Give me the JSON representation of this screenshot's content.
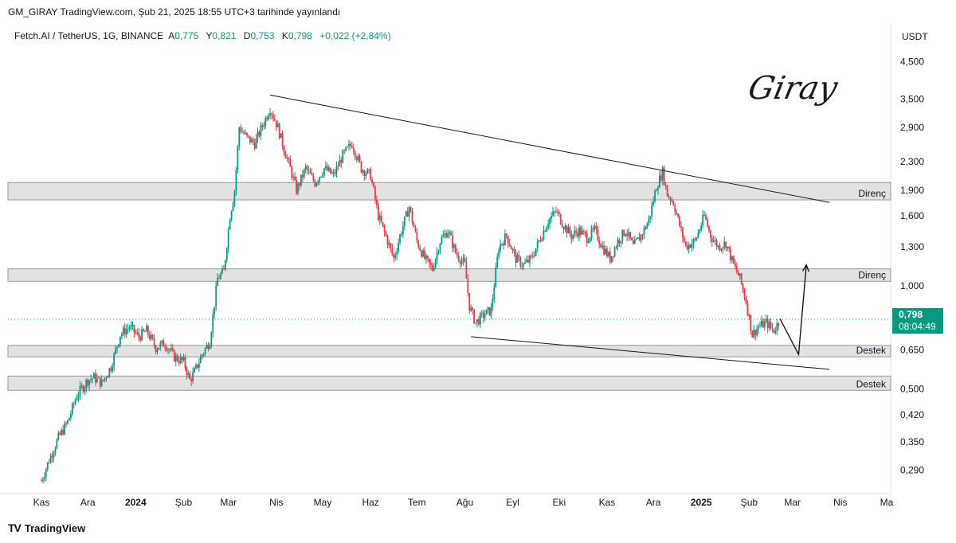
{
  "header": {
    "publish_line": "GM_GIRAY TradingView.com, Şub 21, 2025 18:55 UTC+3 tarihinde yayınlandı"
  },
  "legend": {
    "symbol": "Fetch.AI / TetherUS, 1G, BINANCE",
    "open_label": "A",
    "open": "0,775",
    "high_label": "Y",
    "high": "0,821",
    "low_label": "D",
    "low": "0,753",
    "close_label": "K",
    "close": "0,798",
    "change": "+0,022 (+2,84%)"
  },
  "price_axis": {
    "unit": "USDT"
  },
  "last_price": {
    "price": "0,798",
    "countdown": "08:04:49"
  },
  "signature": "Giray",
  "footer": {
    "brand": "TradingView",
    "logo_icon": "tradingview-logo-icon"
  },
  "colors": {
    "up": "#089981",
    "down": "#f23645",
    "zone_fill": "#e2e2e2",
    "zone_border": "#9a9a9a",
    "line": "#131722"
  },
  "chart_data": {
    "type": "candlestick",
    "y_scale": "log",
    "ylim": [
      0.25,
      5.0
    ],
    "y_ticks": [
      {
        "value": 4.5,
        "label": "4,500"
      },
      {
        "value": 3.5,
        "label": "3,500"
      },
      {
        "value": 2.9,
        "label": "2,900"
      },
      {
        "value": 2.3,
        "label": "2,300"
      },
      {
        "value": 1.9,
        "label": "1,900"
      },
      {
        "value": 1.6,
        "label": "1,600"
      },
      {
        "value": 1.3,
        "label": "1,300"
      },
      {
        "value": 1.0,
        "label": "1,000"
      },
      {
        "value": 0.65,
        "label": "0,650"
      },
      {
        "value": 0.5,
        "label": "0,500"
      },
      {
        "value": 0.42,
        "label": "0,420"
      },
      {
        "value": 0.35,
        "label": "0,350"
      },
      {
        "value": 0.29,
        "label": "0,290"
      }
    ],
    "x_range": [
      "2023-11-01",
      "2025-05-01"
    ],
    "x_ticks": [
      {
        "date": "2023-11-01",
        "label": "Kas",
        "bold": false
      },
      {
        "date": "2023-12-01",
        "label": "Ara",
        "bold": false
      },
      {
        "date": "2024-01-01",
        "label": "2024",
        "bold": true
      },
      {
        "date": "2024-02-01",
        "label": "Şub",
        "bold": false
      },
      {
        "date": "2024-03-01",
        "label": "Mar",
        "bold": false
      },
      {
        "date": "2024-04-01",
        "label": "Nis",
        "bold": false
      },
      {
        "date": "2024-05-01",
        "label": "May",
        "bold": false
      },
      {
        "date": "2024-06-01",
        "label": "Haz",
        "bold": false
      },
      {
        "date": "2024-07-01",
        "label": "Tem",
        "bold": false
      },
      {
        "date": "2024-08-01",
        "label": "Ağu",
        "bold": false
      },
      {
        "date": "2024-09-01",
        "label": "Eyl",
        "bold": false
      },
      {
        "date": "2024-10-01",
        "label": "Eki",
        "bold": false
      },
      {
        "date": "2024-11-01",
        "label": "Kas",
        "bold": false
      },
      {
        "date": "2024-12-01",
        "label": "Ara",
        "bold": false
      },
      {
        "date": "2025-01-01",
        "label": "2025",
        "bold": true
      },
      {
        "date": "2025-02-01",
        "label": "Şub",
        "bold": false
      },
      {
        "date": "2025-03-01",
        "label": "Mar",
        "bold": false
      },
      {
        "date": "2025-04-01",
        "label": "Nis",
        "bold": false
      },
      {
        "date": "2025-05-01",
        "label": "Ma",
        "bold": false
      }
    ],
    "price_path": [
      [
        "2023-11-01",
        0.27
      ],
      [
        "2023-11-06",
        0.31
      ],
      [
        "2023-11-12",
        0.36
      ],
      [
        "2023-11-18",
        0.4
      ],
      [
        "2023-11-24",
        0.48
      ],
      [
        "2023-12-01",
        0.53
      ],
      [
        "2023-12-05",
        0.54
      ],
      [
        "2023-12-10",
        0.52
      ],
      [
        "2023-12-16",
        0.58
      ],
      [
        "2023-12-22",
        0.72
      ],
      [
        "2023-12-28",
        0.76
      ],
      [
        "2024-01-03",
        0.71
      ],
      [
        "2024-01-08",
        0.74
      ],
      [
        "2024-01-14",
        0.66
      ],
      [
        "2024-01-20",
        0.68
      ],
      [
        "2024-01-26",
        0.62
      ],
      [
        "2024-02-01",
        0.6
      ],
      [
        "2024-02-05",
        0.53
      ],
      [
        "2024-02-08",
        0.56
      ],
      [
        "2024-02-13",
        0.63
      ],
      [
        "2024-02-18",
        0.69
      ],
      [
        "2024-02-23",
        1.05
      ],
      [
        "2024-02-27",
        1.1
      ],
      [
        "2024-03-02",
        1.6
      ],
      [
        "2024-03-05",
        1.9
      ],
      [
        "2024-03-08",
        2.9
      ],
      [
        "2024-03-13",
        2.7
      ],
      [
        "2024-03-18",
        2.6
      ],
      [
        "2024-03-24",
        3.0
      ],
      [
        "2024-03-28",
        3.3
      ],
      [
        "2024-04-02",
        2.9
      ],
      [
        "2024-04-06",
        2.5
      ],
      [
        "2024-04-10",
        2.2
      ],
      [
        "2024-04-14",
        1.9
      ],
      [
        "2024-04-20",
        2.2
      ],
      [
        "2024-04-26",
        2.0
      ],
      [
        "2024-05-02",
        2.2
      ],
      [
        "2024-05-08",
        2.1
      ],
      [
        "2024-05-14",
        2.4
      ],
      [
        "2024-05-20",
        2.6
      ],
      [
        "2024-05-26",
        2.2
      ],
      [
        "2024-06-01",
        2.1
      ],
      [
        "2024-06-06",
        1.6
      ],
      [
        "2024-06-12",
        1.35
      ],
      [
        "2024-06-16",
        1.2
      ],
      [
        "2024-06-21",
        1.45
      ],
      [
        "2024-06-26",
        1.7
      ],
      [
        "2024-07-01",
        1.35
      ],
      [
        "2024-07-06",
        1.2
      ],
      [
        "2024-07-11",
        1.12
      ],
      [
        "2024-07-16",
        1.35
      ],
      [
        "2024-07-21",
        1.45
      ],
      [
        "2024-07-26",
        1.25
      ],
      [
        "2024-08-01",
        1.15
      ],
      [
        "2024-08-04",
        0.87
      ],
      [
        "2024-08-08",
        0.78
      ],
      [
        "2024-08-13",
        0.82
      ],
      [
        "2024-08-18",
        0.85
      ],
      [
        "2024-08-23",
        1.3
      ],
      [
        "2024-08-28",
        1.4
      ],
      [
        "2024-09-03",
        1.2
      ],
      [
        "2024-09-08",
        1.15
      ],
      [
        "2024-09-13",
        1.2
      ],
      [
        "2024-09-18",
        1.35
      ],
      [
        "2024-09-24",
        1.55
      ],
      [
        "2024-09-29",
        1.65
      ],
      [
        "2024-10-04",
        1.5
      ],
      [
        "2024-10-09",
        1.4
      ],
      [
        "2024-10-14",
        1.45
      ],
      [
        "2024-10-19",
        1.38
      ],
      [
        "2024-10-24",
        1.45
      ],
      [
        "2024-10-29",
        1.3
      ],
      [
        "2024-11-03",
        1.2
      ],
      [
        "2024-11-08",
        1.35
      ],
      [
        "2024-11-13",
        1.45
      ],
      [
        "2024-11-18",
        1.3
      ],
      [
        "2024-11-23",
        1.4
      ],
      [
        "2024-11-28",
        1.55
      ],
      [
        "2024-12-03",
        1.95
      ],
      [
        "2024-12-07",
        2.15
      ],
      [
        "2024-12-10",
        1.85
      ],
      [
        "2024-12-14",
        1.75
      ],
      [
        "2024-12-18",
        1.5
      ],
      [
        "2024-12-22",
        1.3
      ],
      [
        "2024-12-28",
        1.35
      ],
      [
        "2025-01-03",
        1.6
      ],
      [
        "2025-01-07",
        1.4
      ],
      [
        "2025-01-12",
        1.3
      ],
      [
        "2025-01-17",
        1.33
      ],
      [
        "2025-01-22",
        1.15
      ],
      [
        "2025-01-26",
        1.05
      ],
      [
        "2025-01-30",
        0.9
      ],
      [
        "2025-02-03",
        0.72
      ],
      [
        "2025-02-07",
        0.76
      ],
      [
        "2025-02-12",
        0.78
      ],
      [
        "2025-02-17",
        0.74
      ],
      [
        "2025-02-21",
        0.798
      ]
    ],
    "zones": [
      {
        "label": "Direnç",
        "top": 2.0,
        "bottom": 1.78
      },
      {
        "label": "Direnç",
        "top": 1.12,
        "bottom": 1.03
      },
      {
        "label": "Destek",
        "top": 0.67,
        "bottom": 0.62
      },
      {
        "label": "Destek",
        "top": 0.545,
        "bottom": 0.495
      }
    ],
    "trendlines": [
      {
        "from": [
          "2024-03-28",
          3.6
        ],
        "to": [
          "2025-03-25",
          1.75
        ]
      },
      {
        "from": [
          "2024-08-05",
          0.71
        ],
        "to": [
          "2025-03-25",
          0.57
        ]
      }
    ],
    "projection": [
      [
        "2025-02-21",
        0.8
      ],
      [
        "2025-03-05",
        0.63
      ],
      [
        "2025-03-10",
        1.15
      ]
    ],
    "last_close": 0.798
  }
}
